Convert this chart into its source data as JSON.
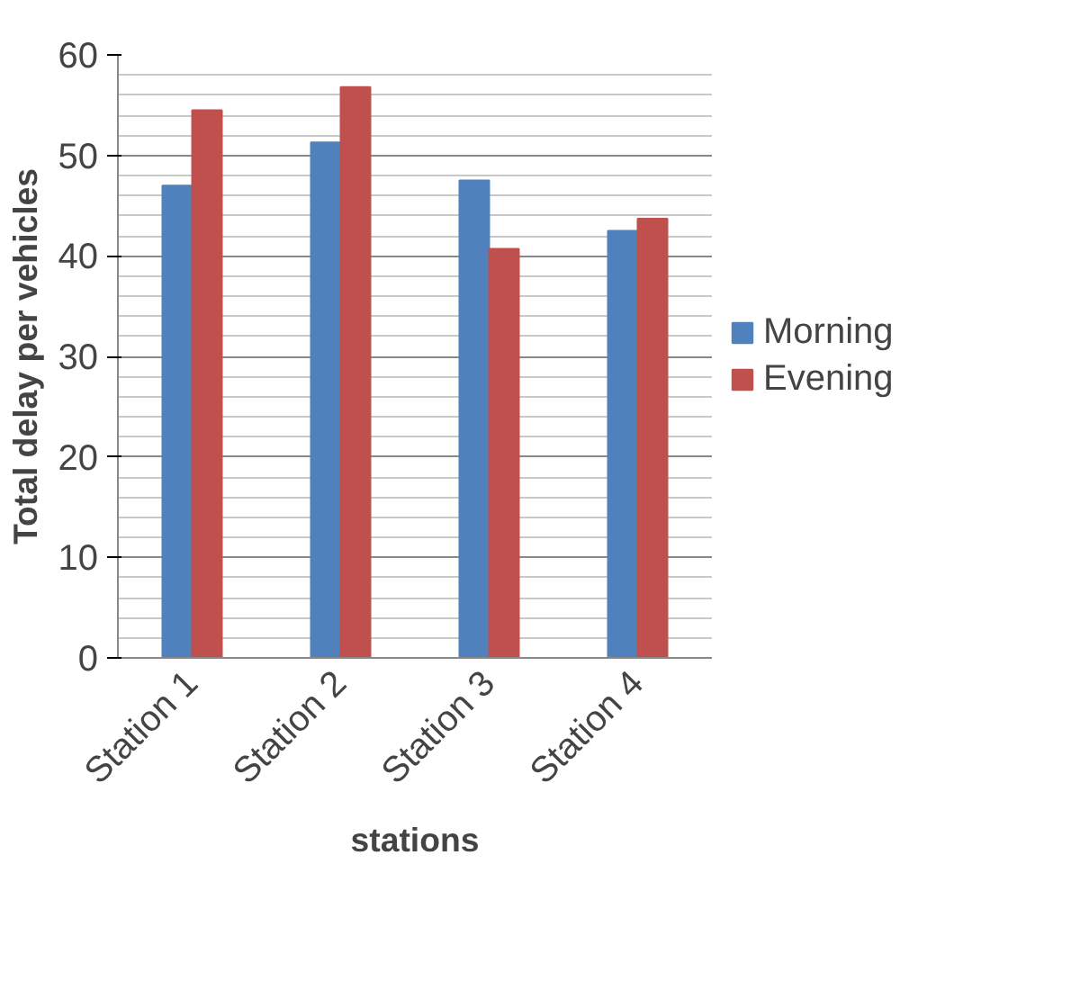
{
  "chart_data": {
    "type": "bar",
    "xlabel": "stations",
    "ylabel": "Total delay per vehicles",
    "categories": [
      "Station 1",
      "Station 2",
      "Station 3",
      "Station 4"
    ],
    "series": [
      {
        "name": "Morning",
        "color": "#4f81bd",
        "values": [
          47,
          51.3,
          47.5,
          42.5
        ]
      },
      {
        "name": "Evening",
        "color": "#c0504d",
        "values": [
          54.5,
          56.8,
          40.7,
          43.7
        ]
      }
    ],
    "ylim": [
      0,
      60
    ],
    "yticks": [
      0,
      10,
      20,
      30,
      40,
      50,
      60
    ],
    "grid": "y",
    "legend": "right"
  }
}
